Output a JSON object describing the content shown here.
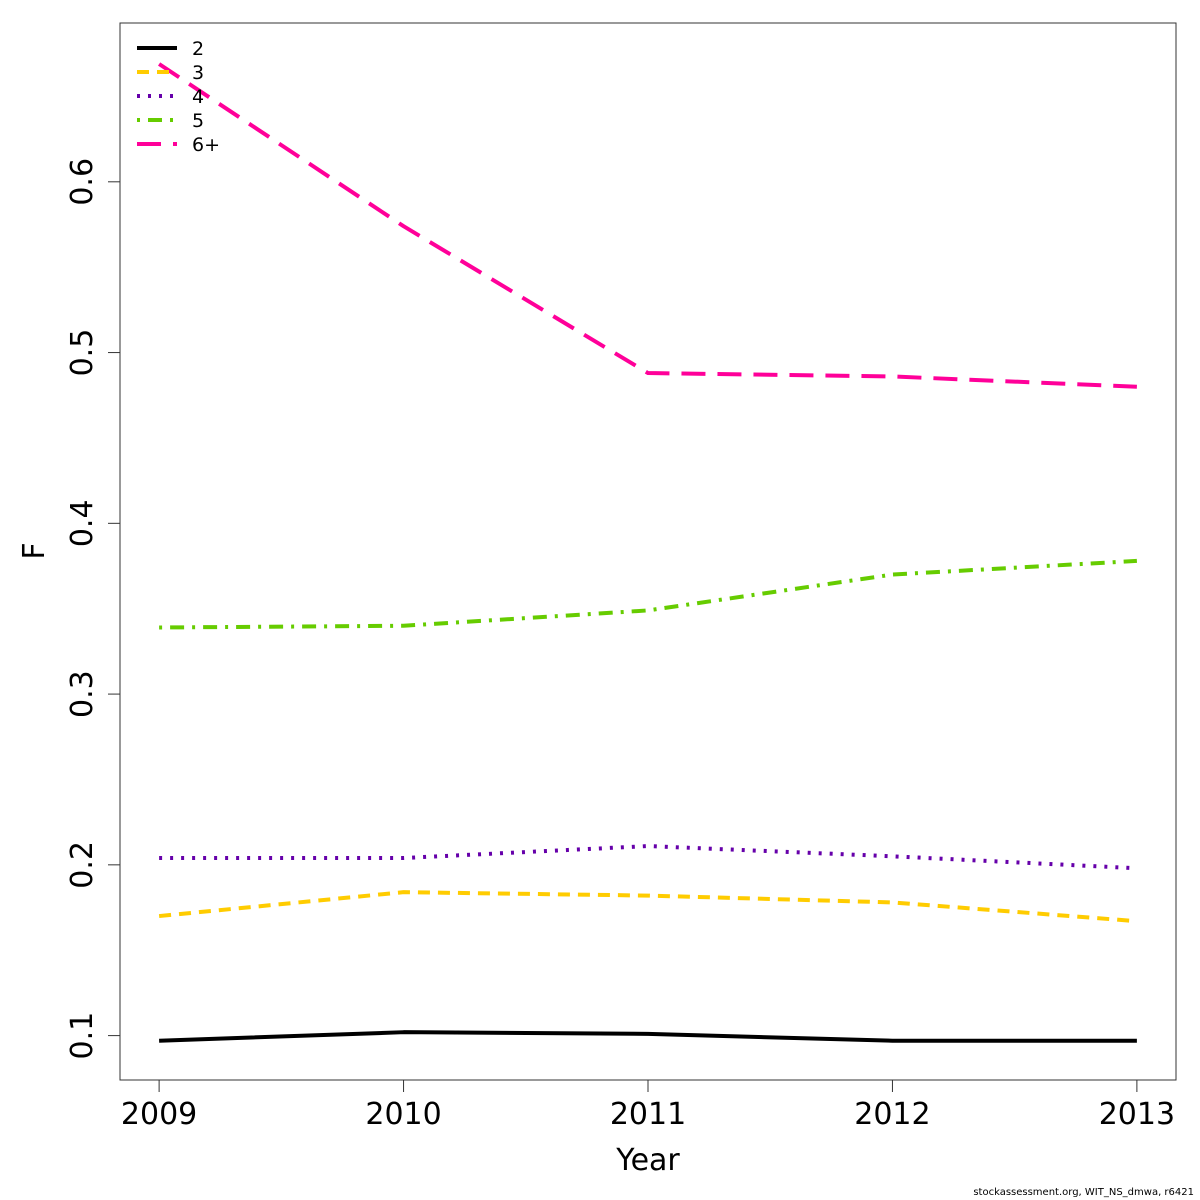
{
  "chart_data": {
    "type": "line",
    "title": "",
    "xlabel": "Year",
    "ylabel": "F",
    "x": [
      2009,
      2010,
      2011,
      2012,
      2013
    ],
    "x_tick_labels": [
      "2009",
      "2010",
      "2011",
      "2012",
      "2013"
    ],
    "y_ticks": [
      0.1,
      0.2,
      0.3,
      0.4,
      0.5,
      0.6
    ],
    "y_tick_labels": [
      "0.1",
      "0.2",
      "0.3",
      "0.4",
      "0.5",
      "0.6"
    ],
    "xlim": [
      2008.84,
      2013.16
    ],
    "ylim": [
      0.074,
      0.693
    ],
    "grid": false,
    "legend_position": "top-left",
    "series": [
      {
        "name": "2",
        "values": [
          0.097,
          0.102,
          0.101,
          0.097,
          0.097
        ],
        "color": "#000000",
        "dash": "solid"
      },
      {
        "name": "3",
        "values": [
          0.17,
          0.184,
          0.182,
          0.178,
          0.167
        ],
        "color": "#FFCC00",
        "dash": "dashed"
      },
      {
        "name": "4",
        "values": [
          0.204,
          0.204,
          0.211,
          0.205,
          0.198
        ],
        "color": "#6600AA",
        "dash": "dotted"
      },
      {
        "name": "5",
        "values": [
          0.339,
          0.34,
          0.349,
          0.37,
          0.378
        ],
        "color": "#66CC00",
        "dash": "dotdash"
      },
      {
        "name": "6+",
        "values": [
          0.669,
          0.574,
          0.488,
          0.486,
          0.48
        ],
        "color": "#FF0099",
        "dash": "longdash"
      }
    ]
  },
  "footer": {
    "credit": "stockassessment.org, WIT_NS_dmwa, r6421"
  }
}
